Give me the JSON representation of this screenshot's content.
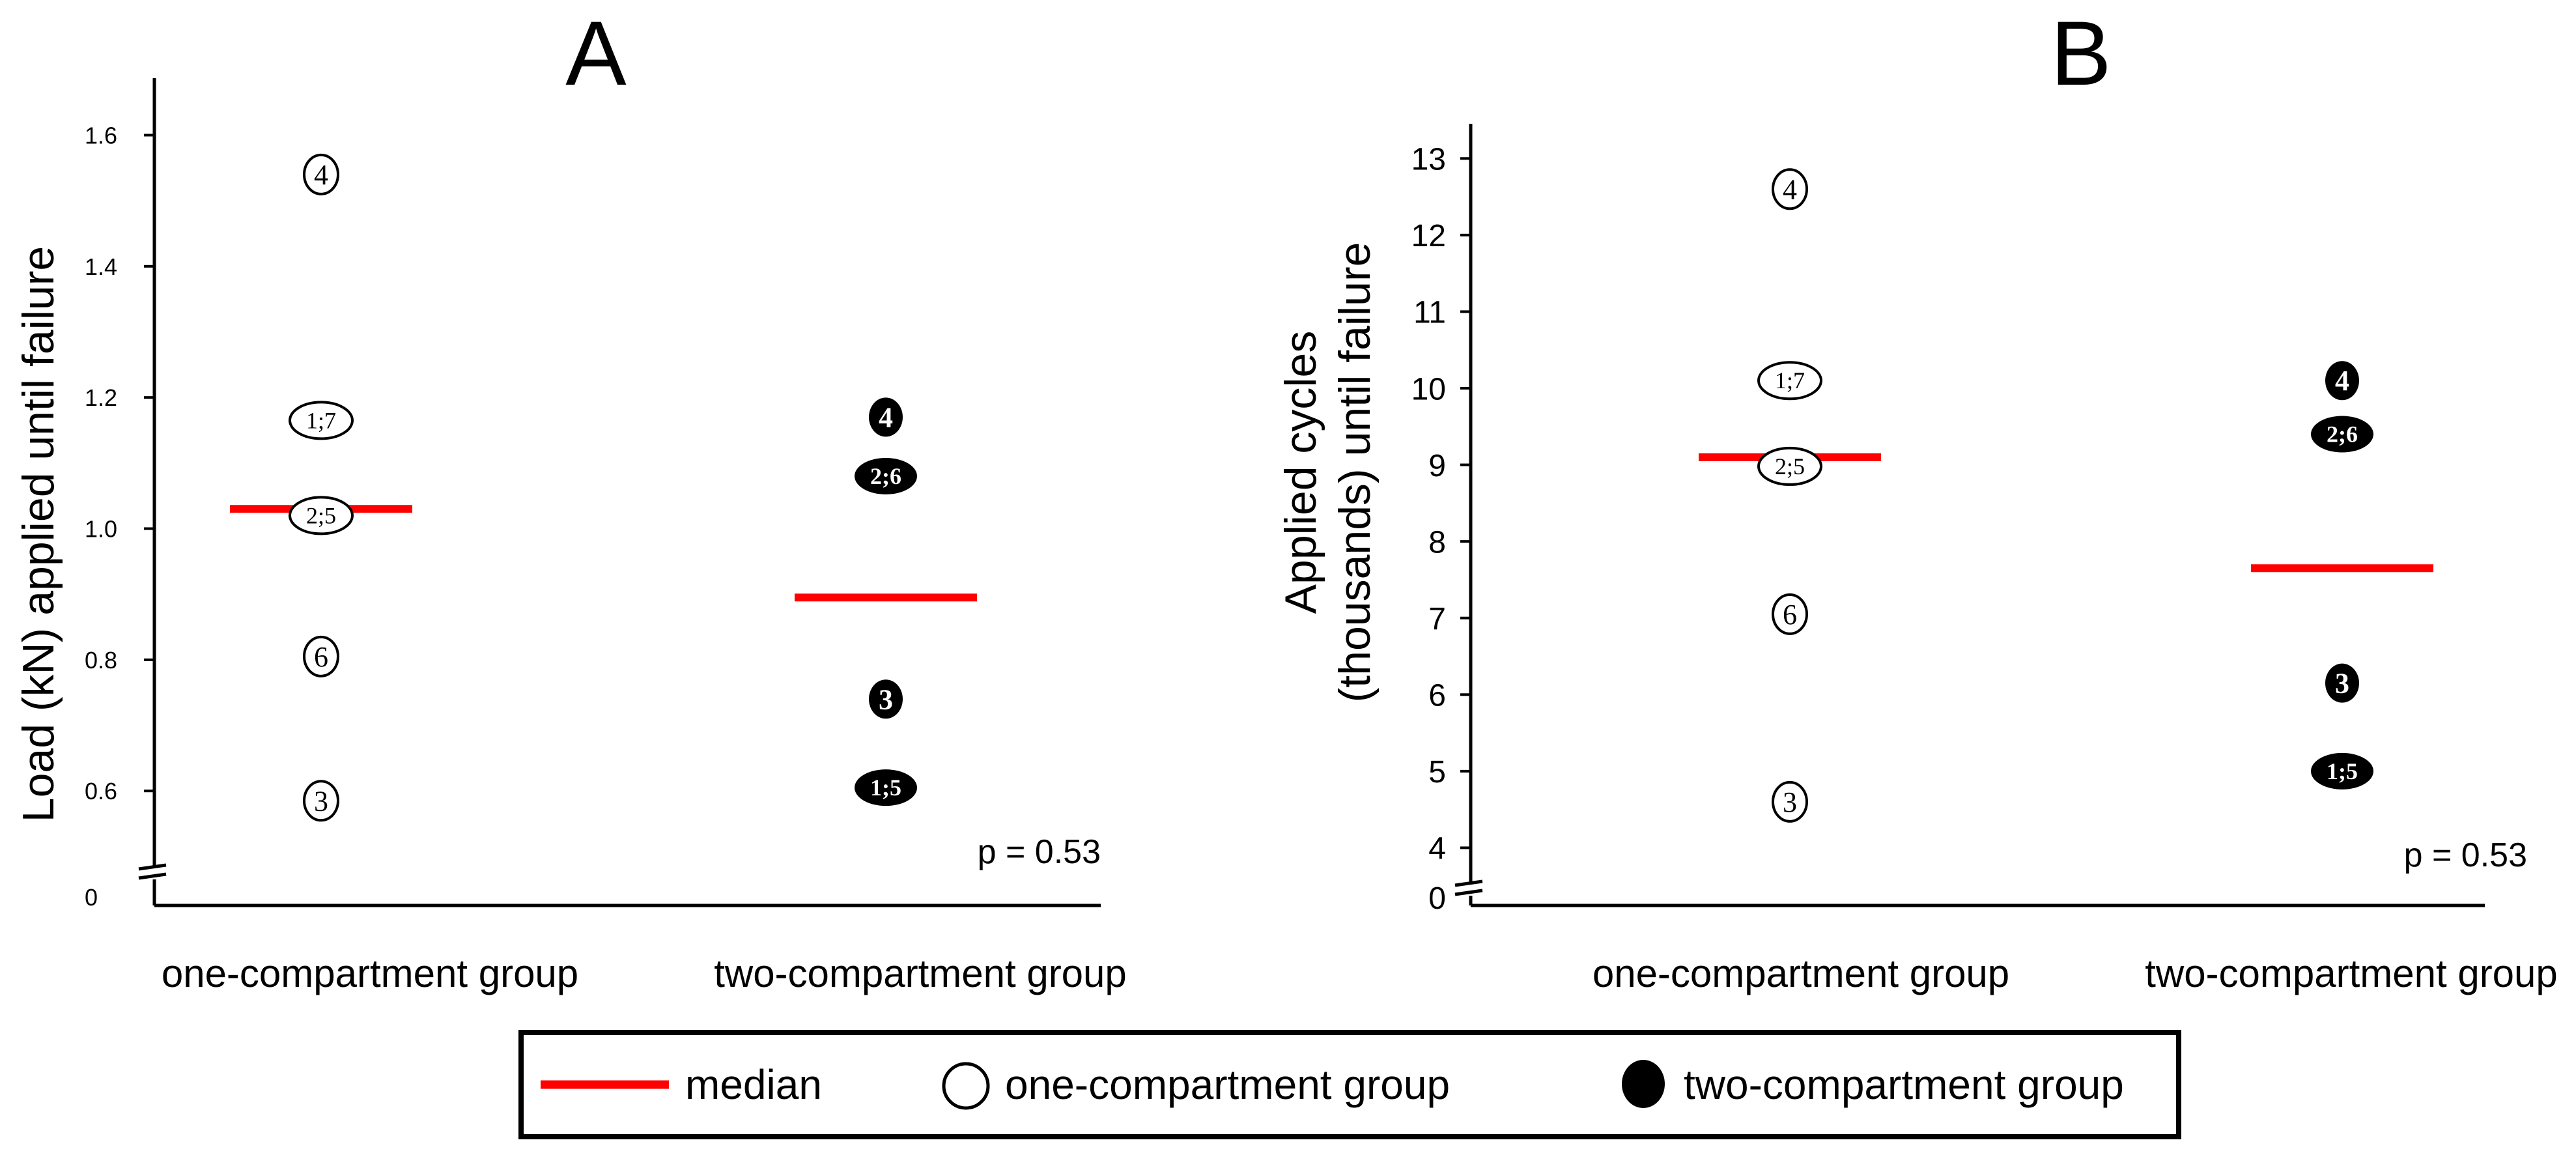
{
  "colors": {
    "median": "#ff0000",
    "one_fill": "#ffffff",
    "two_fill": "#000000",
    "ink": "#000000"
  },
  "chart_data": [
    {
      "type": "scatter",
      "panel_label": "A",
      "ylabel": "Load (kN) applied until failure",
      "yticks": [
        {
          "v": 0.6,
          "label": "0.6"
        },
        {
          "v": 0.8,
          "label": "0.8"
        },
        {
          "v": 1.0,
          "label": "1.0"
        },
        {
          "v": 1.2,
          "label": "1.2"
        },
        {
          "v": 1.4,
          "label": "1.4"
        },
        {
          "v": 1.6,
          "label": "1.6"
        }
      ],
      "baseline_label": "0",
      "ylim": [
        0.48,
        1.67
      ],
      "axis_break": true,
      "categories": [
        "one-compartment group",
        "two-compartment group"
      ],
      "points": [
        {
          "group": 0,
          "y": 1.54,
          "label": "4"
        },
        {
          "group": 0,
          "y": 1.165,
          "label": "1;7"
        },
        {
          "group": 0,
          "y": 1.02,
          "label": "2;5"
        },
        {
          "group": 0,
          "y": 0.805,
          "label": "6"
        },
        {
          "group": 0,
          "y": 0.585,
          "label": "3"
        },
        {
          "group": 1,
          "y": 1.17,
          "label": "4"
        },
        {
          "group": 1,
          "y": 1.08,
          "label": "2;6"
        },
        {
          "group": 1,
          "y": 0.74,
          "label": "3"
        },
        {
          "group": 1,
          "y": 0.605,
          "label": "1;5"
        }
      ],
      "medians": [
        {
          "group": 0,
          "y": 1.03
        },
        {
          "group": 1,
          "y": 0.895
        }
      ],
      "annotation": "p = 0.53"
    },
    {
      "type": "scatter",
      "panel_label": "B",
      "ylabel_lines": [
        "Applied cycles",
        "(thousands) until failure"
      ],
      "yticks": [
        {
          "v": 4,
          "label": "4"
        },
        {
          "v": 5,
          "label": "5"
        },
        {
          "v": 6,
          "label": "6"
        },
        {
          "v": 7,
          "label": "7"
        },
        {
          "v": 8,
          "label": "8"
        },
        {
          "v": 9,
          "label": "9"
        },
        {
          "v": 10,
          "label": "10"
        },
        {
          "v": 11,
          "label": "11"
        },
        {
          "v": 12,
          "label": "12"
        },
        {
          "v": 13,
          "label": "13"
        }
      ],
      "baseline_label": "0",
      "ylim": [
        3.4,
        13.3
      ],
      "axis_break": true,
      "categories": [
        "one-compartment group",
        "two-compartment group"
      ],
      "points": [
        {
          "group": 0,
          "y": 12.6,
          "label": "4"
        },
        {
          "group": 0,
          "y": 10.1,
          "label": "1;7"
        },
        {
          "group": 0,
          "y": 8.98,
          "label": "2;5"
        },
        {
          "group": 0,
          "y": 7.05,
          "label": "6"
        },
        {
          "group": 0,
          "y": 4.6,
          "label": "3"
        },
        {
          "group": 1,
          "y": 10.1,
          "label": "4"
        },
        {
          "group": 1,
          "y": 9.4,
          "label": "2;6"
        },
        {
          "group": 1,
          "y": 6.15,
          "label": "3"
        },
        {
          "group": 1,
          "y": 5.0,
          "label": "1;5"
        }
      ],
      "medians": [
        {
          "group": 0,
          "y": 9.1
        },
        {
          "group": 1,
          "y": 7.65
        }
      ],
      "annotation": "p = 0.53"
    }
  ],
  "legend": {
    "items": [
      {
        "kind": "median",
        "label": "median"
      },
      {
        "kind": "one",
        "label": "one-compartment group"
      },
      {
        "kind": "two",
        "label": "two-compartment group"
      }
    ]
  }
}
